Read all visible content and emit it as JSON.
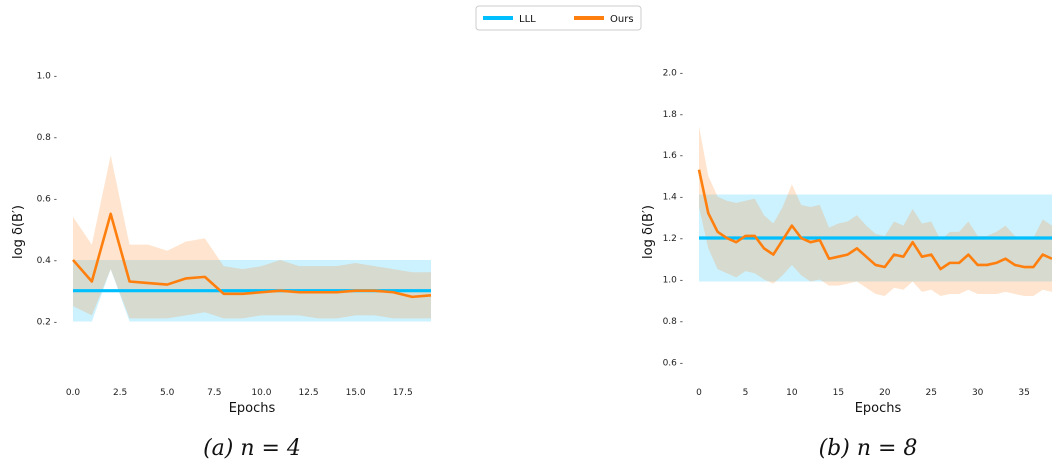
{
  "legend": {
    "position": "top-center",
    "entries": [
      {
        "label": "LLL",
        "color": "#00bfff"
      },
      {
        "label": "Ours",
        "color": "#ff7f0e"
      }
    ]
  },
  "chart_data": [
    {
      "type": "line",
      "caption": "(a) n = 4",
      "xlabel": "Epochs",
      "ylabel": "log δ(B′)",
      "xlim": [
        0,
        19
      ],
      "ylim": [
        0.0,
        1.05
      ],
      "xticks": [
        0.0,
        2.5,
        5.0,
        7.5,
        10.0,
        12.5,
        15.0,
        17.5
      ],
      "xtick_labels": [
        "0.0",
        "2.5",
        "5.0",
        "7.5",
        "10.0",
        "12.5",
        "15.0",
        "17.5"
      ],
      "yticks": [
        0.2,
        0.4,
        0.6,
        0.8,
        1.0
      ],
      "ytick_labels": [
        "0.2 -",
        "0.4 -",
        "0.6 -",
        "0.8 -",
        "1.0 -"
      ],
      "grid": false,
      "series": [
        {
          "name": "LLL",
          "color": "#00bfff",
          "x": [
            0,
            1,
            2,
            3,
            4,
            5,
            6,
            7,
            8,
            9,
            10,
            11,
            12,
            13,
            14,
            15,
            16,
            17,
            18,
            19
          ],
          "values": [
            0.3,
            0.3,
            0.3,
            0.3,
            0.3,
            0.3,
            0.3,
            0.3,
            0.3,
            0.3,
            0.3,
            0.3,
            0.3,
            0.3,
            0.3,
            0.3,
            0.3,
            0.3,
            0.3,
            0.3
          ],
          "lower": [
            0.2,
            0.2,
            0.37,
            0.2,
            0.2,
            0.2,
            0.2,
            0.2,
            0.2,
            0.2,
            0.2,
            0.2,
            0.2,
            0.2,
            0.2,
            0.2,
            0.2,
            0.2,
            0.2,
            0.2
          ],
          "upper": [
            0.4,
            0.4,
            0.4,
            0.4,
            0.4,
            0.4,
            0.4,
            0.4,
            0.4,
            0.4,
            0.4,
            0.4,
            0.4,
            0.4,
            0.4,
            0.4,
            0.4,
            0.4,
            0.4,
            0.4
          ]
        },
        {
          "name": "Ours",
          "color": "#ff7f0e",
          "x": [
            0,
            1,
            2,
            3,
            4,
            5,
            6,
            7,
            8,
            9,
            10,
            11,
            12,
            13,
            14,
            15,
            16,
            17,
            18,
            19
          ],
          "values": [
            0.4,
            0.33,
            0.55,
            0.33,
            0.325,
            0.32,
            0.34,
            0.345,
            0.29,
            0.29,
            0.295,
            0.3,
            0.295,
            0.295,
            0.295,
            0.3,
            0.3,
            0.295,
            0.28,
            0.285
          ],
          "lower": [
            0.25,
            0.22,
            0.37,
            0.21,
            0.21,
            0.21,
            0.22,
            0.23,
            0.21,
            0.21,
            0.22,
            0.22,
            0.22,
            0.21,
            0.21,
            0.22,
            0.22,
            0.21,
            0.21,
            0.21
          ],
          "upper": [
            0.54,
            0.45,
            0.74,
            0.45,
            0.45,
            0.43,
            0.46,
            0.47,
            0.38,
            0.37,
            0.38,
            0.4,
            0.38,
            0.38,
            0.38,
            0.39,
            0.38,
            0.37,
            0.36,
            0.36
          ]
        }
      ]
    },
    {
      "type": "line",
      "caption": "(b) n = 8",
      "xlabel": "Epochs",
      "ylabel": "log δ(B′)",
      "xlim": [
        0,
        38
      ],
      "ylim": [
        0.5,
        2.05
      ],
      "xticks": [
        0,
        5,
        10,
        15,
        20,
        25,
        30,
        35
      ],
      "xtick_labels": [
        "0",
        "5",
        "10",
        "15",
        "20",
        "25",
        "30",
        "35"
      ],
      "yticks": [
        0.6,
        0.8,
        1.0,
        1.2,
        1.4,
        1.6,
        1.8,
        2.0
      ],
      "ytick_labels": [
        "0.6 -",
        "0.8 -",
        "1.0 -",
        "1.2 -",
        "1.4 -",
        "1.6 -",
        "1.8 -",
        "2.0 -"
      ],
      "grid": false,
      "series": [
        {
          "name": "LLL",
          "color": "#00bfff",
          "x": [
            0,
            38
          ],
          "values": [
            1.2,
            1.2
          ],
          "lower": [
            0.99,
            0.99
          ],
          "upper": [
            1.41,
            1.41
          ]
        },
        {
          "name": "Ours",
          "color": "#ff7f0e",
          "x": [
            0,
            1,
            2,
            3,
            4,
            5,
            6,
            7,
            8,
            9,
            10,
            11,
            12,
            13,
            14,
            15,
            16,
            17,
            18,
            19,
            20,
            21,
            22,
            23,
            24,
            25,
            26,
            27,
            28,
            29,
            30,
            31,
            32,
            33,
            34,
            35,
            36,
            37,
            38
          ],
          "values": [
            1.53,
            1.32,
            1.23,
            1.2,
            1.18,
            1.21,
            1.21,
            1.15,
            1.12,
            1.19,
            1.26,
            1.2,
            1.18,
            1.19,
            1.1,
            1.11,
            1.12,
            1.15,
            1.11,
            1.07,
            1.06,
            1.12,
            1.11,
            1.18,
            1.11,
            1.12,
            1.05,
            1.08,
            1.08,
            1.12,
            1.07,
            1.07,
            1.08,
            1.1,
            1.07,
            1.06,
            1.06,
            1.12,
            1.1
          ],
          "lower": [
            1.35,
            1.15,
            1.05,
            1.03,
            1.01,
            1.04,
            1.03,
            1.0,
            0.98,
            1.02,
            1.07,
            1.02,
            0.99,
            1.0,
            0.97,
            0.97,
            0.98,
            0.99,
            0.96,
            0.93,
            0.92,
            0.96,
            0.95,
            0.99,
            0.94,
            0.95,
            0.92,
            0.93,
            0.93,
            0.95,
            0.93,
            0.93,
            0.93,
            0.94,
            0.93,
            0.92,
            0.92,
            0.95,
            0.94
          ],
          "upper": [
            1.74,
            1.5,
            1.4,
            1.38,
            1.37,
            1.38,
            1.39,
            1.31,
            1.27,
            1.35,
            1.46,
            1.36,
            1.35,
            1.36,
            1.25,
            1.27,
            1.28,
            1.31,
            1.26,
            1.22,
            1.21,
            1.28,
            1.26,
            1.34,
            1.27,
            1.28,
            1.19,
            1.23,
            1.23,
            1.28,
            1.21,
            1.21,
            1.23,
            1.26,
            1.21,
            1.2,
            1.2,
            1.29,
            1.26
          ]
        }
      ]
    }
  ]
}
